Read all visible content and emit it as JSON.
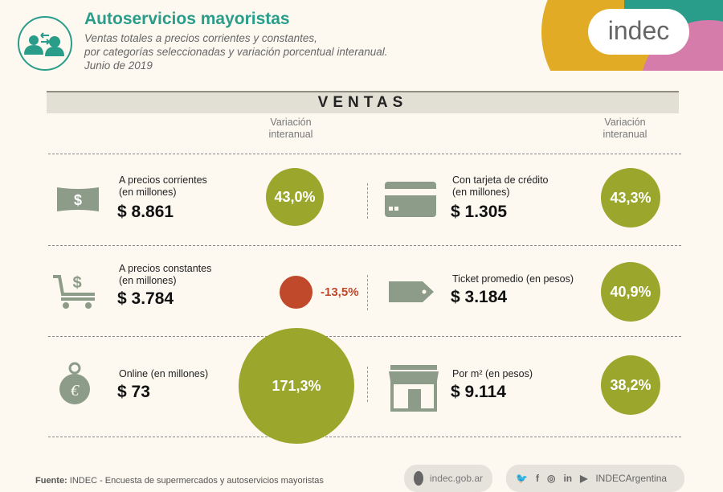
{
  "header": {
    "title": "Autoservicios mayoristas",
    "subtitle_lines": [
      "Ventas totales a precios corrientes y constantes,",
      "por categorías seleccionadas y variación porcentual interanual.",
      "Junio de 2019"
    ],
    "logo": "indec"
  },
  "section_title": "VENTAS",
  "variation_label": [
    "Variación",
    "interanual"
  ],
  "colors": {
    "accent": "#2a9d8a",
    "positive": "#9aa72c",
    "negative": "#c0482b",
    "icon": "#8c9c88"
  },
  "left": [
    {
      "icon": "banknote-icon",
      "label": [
        "A precios corrientes",
        "(en millones)"
      ],
      "value": "$ 8.861",
      "variation": "43,0%"
    },
    {
      "icon": "cart-dollar-icon",
      "label": [
        "A precios constantes",
        "(en millones)"
      ],
      "value": "$ 3.784",
      "variation": "-13,5%"
    },
    {
      "icon": "money-bag-icon",
      "label": [
        "Online (en millones)"
      ],
      "value": "$ 73",
      "variation": "171,3%"
    }
  ],
  "right": [
    {
      "icon": "credit-card-icon",
      "label": [
        "Con tarjeta de crédito",
        "(en millones)"
      ],
      "value": "$ 1.305",
      "variation": "43,3%"
    },
    {
      "icon": "price-tag-icon",
      "label": [
        "Ticket promedio (en pesos)"
      ],
      "value": "$ 3.184",
      "variation": "40,9%"
    },
    {
      "icon": "store-icon",
      "label": [
        "Por m² (en pesos)"
      ],
      "value": "$ 9.114",
      "variation": "38,2%"
    }
  ],
  "footer": {
    "source_label": "Fuente:",
    "source_text": "INDEC - Encuesta de supermercados y autoservicios mayoristas",
    "web": "indec.gob.ar",
    "social": "INDECArgentina"
  }
}
